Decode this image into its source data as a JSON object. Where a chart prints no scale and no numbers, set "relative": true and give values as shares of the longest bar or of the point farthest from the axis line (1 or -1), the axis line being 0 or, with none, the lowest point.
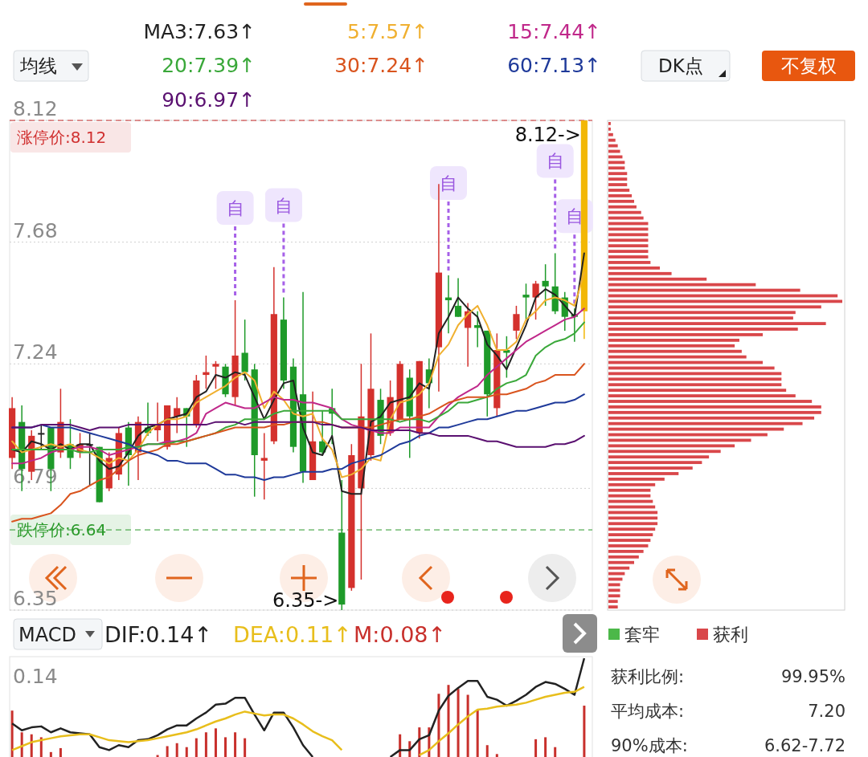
{
  "chart_data": [
    {
      "type": "other",
      "annotations": [
        "均线",
        "DK点",
        "不复权"
      ]
    },
    {
      "type": "candlestick",
      "legend": "top",
      "grid": "y",
      "ylim": [
        6.35,
        8.12
      ],
      "yticks": [
        8.12,
        7.68,
        7.24,
        6.79,
        6.35
      ],
      "categories": [
        null,
        null,
        null,
        null,
        null,
        null,
        null,
        null,
        null,
        null,
        null,
        null,
        null,
        null,
        null,
        null,
        null,
        null,
        null,
        null,
        null,
        null,
        null,
        null,
        null,
        null,
        null,
        null,
        null,
        null,
        null,
        null,
        null,
        null,
        null,
        null,
        null,
        null,
        null,
        null,
        null,
        null,
        null,
        null,
        null,
        null,
        null,
        null,
        null,
        null,
        null,
        null,
        null,
        null,
        null,
        null,
        null,
        null,
        null,
        null
      ],
      "ohlc": [
        [
          6.9,
          7.12,
          6.86,
          7.08
        ],
        [
          7.03,
          7.09,
          6.78,
          6.86
        ],
        [
          6.85,
          7.0,
          6.82,
          6.98
        ],
        [
          6.99,
          7.02,
          6.93,
          6.99
        ],
        [
          7.01,
          7.01,
          6.78,
          6.86
        ],
        [
          6.92,
          7.15,
          6.9,
          7.03
        ],
        [
          6.95,
          7.04,
          6.86,
          6.9
        ],
        [
          6.92,
          6.99,
          6.9,
          6.95
        ],
        [
          6.95,
          6.99,
          6.8,
          6.95
        ],
        [
          6.94,
          6.94,
          6.74,
          6.74
        ],
        [
          6.79,
          6.92,
          6.78,
          6.9
        ],
        [
          6.84,
          7.01,
          6.82,
          6.99
        ],
        [
          7.01,
          7.03,
          6.8,
          6.91
        ],
        [
          6.92,
          7.05,
          6.82,
          7.03
        ],
        [
          7.01,
          7.1,
          6.98,
          6.99
        ],
        [
          7.0,
          7.1,
          6.96,
          7.02
        ],
        [
          6.94,
          7.09,
          6.93,
          7.09
        ],
        [
          7.05,
          7.12,
          6.99,
          7.08
        ],
        [
          7.08,
          7.08,
          6.94,
          7.05
        ],
        [
          7.02,
          7.2,
          7.01,
          7.18
        ],
        [
          7.2,
          7.27,
          7.15,
          7.21
        ],
        [
          7.23,
          7.25,
          7.15,
          7.24
        ],
        [
          7.23,
          7.24,
          7.12,
          7.13
        ],
        [
          7.12,
          7.47,
          7.09,
          7.27
        ],
        [
          7.28,
          7.4,
          7.18,
          7.21
        ],
        [
          7.22,
          7.24,
          6.76,
          6.91
        ],
        [
          6.89,
          6.99,
          6.75,
          6.9
        ],
        [
          6.96,
          7.59,
          6.95,
          7.42
        ],
        [
          7.4,
          7.48,
          7.15,
          7.18
        ],
        [
          7.23,
          7.26,
          6.92,
          6.94
        ],
        [
          7.13,
          7.5,
          6.81,
          6.85
        ],
        [
          6.82,
          7.14,
          6.82,
          6.96
        ],
        [
          6.96,
          7.07,
          6.91,
          6.92
        ],
        [
          7.08,
          7.15,
          6.95,
          7.06
        ],
        [
          6.63,
          6.82,
          6.35,
          6.37
        ],
        [
          6.43,
          6.95,
          6.42,
          6.91
        ],
        [
          6.79,
          7.24,
          6.46,
          7.05
        ],
        [
          6.91,
          7.35,
          6.89,
          7.15
        ],
        [
          7.11,
          7.15,
          6.95,
          6.98
        ],
        [
          6.99,
          7.18,
          6.98,
          7.12
        ],
        [
          7.04,
          7.25,
          7.04,
          7.24
        ],
        [
          7.19,
          7.22,
          6.9,
          7.05
        ],
        [
          6.99,
          7.25,
          6.97,
          7.25
        ],
        [
          7.22,
          7.26,
          7.08,
          7.17
        ],
        [
          7.3,
          7.89,
          7.14,
          7.57
        ],
        [
          7.48,
          7.56,
          7.35,
          7.47
        ],
        [
          7.45,
          7.55,
          7.41,
          7.41
        ],
        [
          7.37,
          7.46,
          7.23,
          7.43
        ],
        [
          7.38,
          7.43,
          7.3,
          7.37
        ],
        [
          7.36,
          7.36,
          7.05,
          7.13
        ],
        [
          7.08,
          7.35,
          7.05,
          7.29
        ],
        [
          7.29,
          7.34,
          7.19,
          7.28
        ],
        [
          7.36,
          7.45,
          7.33,
          7.42
        ],
        [
          7.49,
          7.53,
          7.4,
          7.48
        ],
        [
          7.48,
          7.54,
          7.4,
          7.53
        ],
        [
          7.54,
          7.6,
          7.45,
          7.52
        ],
        [
          7.52,
          7.64,
          7.42,
          7.43
        ],
        [
          7.48,
          7.5,
          7.36,
          7.41
        ],
        [
          7.42,
          7.44,
          7.32,
          7.41
        ],
        [
          7.43,
          8.12,
          7.33,
          8.12
        ]
      ],
      "colors": [
        "#d4312d",
        "#1e9a29",
        "#d4312d",
        "#222222",
        "#1e9a29",
        "#d4312d",
        "#1e9a29",
        "#d4312d",
        "#222222",
        "#1e9a29",
        "#d4312d",
        "#d4312d",
        "#1e9a29",
        "#d4312d",
        "#1e9a29",
        "#d4312d",
        "#d4312d",
        "#d4312d",
        "#1e9a29",
        "#d4312d",
        "#d4312d",
        "#d4312d",
        "#1e9a29",
        "#d4312d",
        "#1e9a29",
        "#1e9a29",
        "#d4312d",
        "#d4312d",
        "#1e9a29",
        "#1e9a29",
        "#1e9a29",
        "#d4312d",
        "#1e9a29",
        "#1e9a29",
        "#1e9a29",
        "#d4312d",
        "#d4312d",
        "#d4312d",
        "#1e9a29",
        "#d4312d",
        "#d4312d",
        "#1e9a29",
        "#d4312d",
        "#1e9a29",
        "#d4312d",
        "#1e9a29",
        "#1e9a29",
        "#d4312d",
        "#1e9a29",
        "#1e9a29",
        "#d4312d",
        "#1e9a29",
        "#d4312d",
        "#1e9a29",
        "#d4312d",
        "#1e9a29",
        "#1e9a29",
        "#1e9a29",
        "#1e9a29",
        "#f2b705"
      ],
      "series": [
        {
          "type": "line",
          "name": "MA3:7.63↑",
          "color": "#222222",
          "values": [
            6.93,
            6.92,
            6.96,
            6.95,
            6.93,
            6.95,
            6.93,
            6.95,
            6.95,
            6.89,
            6.86,
            6.87,
            6.92,
            6.98,
            7.01,
            7.02,
            7.04,
            7.05,
            7.06,
            7.12,
            7.14,
            7.2,
            7.19,
            7.21,
            7.2,
            7.12,
            7.04,
            7.11,
            7.17,
            7.18,
            7.01,
            6.92,
            6.91,
            6.98,
            6.78,
            6.77,
            6.77,
            7.03,
            7.05,
            7.1,
            7.11,
            7.12,
            7.17,
            7.15,
            7.35,
            7.41,
            7.48,
            7.44,
            7.41,
            7.31,
            7.27,
            7.22,
            7.3,
            7.38,
            7.48,
            7.51,
            7.49,
            7.45,
            7.41,
            7.64
          ]
        },
        {
          "type": "line",
          "name": "5:7.57↑",
          "color": "#f0b030",
          "values": [
            6.96,
            6.92,
            6.93,
            6.94,
            6.95,
            6.94,
            6.95,
            6.93,
            6.92,
            6.9,
            6.88,
            6.9,
            6.89,
            6.93,
            6.99,
            7.02,
            7.04,
            7.04,
            7.05,
            7.1,
            7.12,
            7.14,
            7.16,
            7.19,
            7.21,
            7.18,
            7.08,
            7.14,
            7.11,
            7.06,
            7.05,
            7.06,
            6.97,
            6.93,
            6.83,
            6.84,
            6.86,
            6.9,
            6.89,
            7.04,
            7.1,
            7.11,
            7.13,
            7.17,
            7.27,
            7.31,
            7.38,
            7.42,
            7.45,
            7.38,
            7.29,
            7.29,
            7.32,
            7.4,
            7.43,
            7.47,
            7.48,
            7.47,
            7.45,
            7.57
          ]
        },
        {
          "type": "line",
          "name": "15:7.44↑",
          "color": "#c0288a",
          "values": [
            6.88,
            6.88,
            6.89,
            6.9,
            6.92,
            6.93,
            6.93,
            6.94,
            6.94,
            6.93,
            6.91,
            6.92,
            6.93,
            6.94,
            6.95,
            6.95,
            6.96,
            6.96,
            6.97,
            6.99,
            7.06,
            7.08,
            7.1,
            7.09,
            7.08,
            7.08,
            7.1,
            7.12,
            7.11,
            7.11,
            7.1,
            7.1,
            7.09,
            7.08,
            7.04,
            7.02,
            7.01,
            7.0,
            6.99,
            6.99,
            7.01,
            7.01,
            7.01,
            7.01,
            7.05,
            7.09,
            7.12,
            7.14,
            7.16,
            7.2,
            7.23,
            7.26,
            7.29,
            7.32,
            7.34,
            7.36,
            7.38,
            7.4,
            7.41,
            7.44
          ]
        },
        {
          "type": "line",
          "name": "20:7.39↑",
          "color": "#3aa83a",
          "values": [
            6.93,
            6.93,
            6.93,
            6.93,
            6.93,
            6.93,
            6.93,
            6.92,
            6.92,
            6.93,
            6.93,
            6.93,
            6.94,
            6.94,
            6.95,
            6.95,
            6.95,
            6.96,
            6.96,
            6.97,
            6.98,
            6.99,
            7.01,
            7.02,
            7.04,
            7.04,
            7.04,
            7.06,
            7.07,
            7.07,
            7.07,
            7.07,
            7.07,
            7.07,
            7.04,
            7.04,
            7.04,
            7.04,
            7.04,
            7.04,
            7.03,
            7.04,
            7.04,
            7.03,
            7.05,
            7.07,
            7.1,
            7.1,
            7.11,
            7.12,
            7.15,
            7.17,
            7.18,
            7.2,
            7.27,
            7.3,
            7.32,
            7.33,
            7.35,
            7.39
          ]
        },
        {
          "type": "line",
          "name": "30:7.24↑",
          "color": "#d9541e",
          "values": [
            6.67,
            6.68,
            6.68,
            6.69,
            6.7,
            6.73,
            6.77,
            6.78,
            6.8,
            6.82,
            6.83,
            6.86,
            6.89,
            6.91,
            6.92,
            6.93,
            6.95,
            6.95,
            6.96,
            6.97,
            6.98,
            6.99,
            7.0,
            7.01,
            7.01,
            7.01,
            7.01,
            7.02,
            7.02,
            7.03,
            7.03,
            7.03,
            7.03,
            7.02,
            7.01,
            7.01,
            7.01,
            7.01,
            7.02,
            7.03,
            7.04,
            7.04,
            7.05,
            7.06,
            7.08,
            7.1,
            7.11,
            7.12,
            7.12,
            7.12,
            7.13,
            7.13,
            7.14,
            7.15,
            7.17,
            7.18,
            7.2,
            7.2,
            7.2,
            7.24
          ]
        },
        {
          "type": "line",
          "name": "60:7.13↑",
          "color": "#1f3a9a",
          "values": [
            7.01,
            7.01,
            7.01,
            7.02,
            7.01,
            7.01,
            7.01,
            7.0,
            6.99,
            6.98,
            6.97,
            6.96,
            6.95,
            6.93,
            6.92,
            6.91,
            6.89,
            6.89,
            6.88,
            6.88,
            6.88,
            6.86,
            6.84,
            6.84,
            6.83,
            6.83,
            6.82,
            6.83,
            6.83,
            6.84,
            6.85,
            6.85,
            6.85,
            6.86,
            6.86,
            6.88,
            6.89,
            6.9,
            6.91,
            6.93,
            6.95,
            6.96,
            6.98,
            6.99,
            7.01,
            7.01,
            7.02,
            7.03,
            7.04,
            7.04,
            7.05,
            7.06,
            7.07,
            7.07,
            7.08,
            7.09,
            7.1,
            7.1,
            7.11,
            7.13
          ]
        },
        {
          "type": "line",
          "name": "90:6.97↑",
          "color": "#5a1070",
          "values": [
            7.01,
            7.01,
            7.01,
            7.02,
            7.02,
            7.02,
            7.02,
            7.01,
            7.0,
            7.01,
            7.01,
            7.01,
            7.02,
            7.02,
            7.02,
            7.02,
            7.02,
            7.02,
            7.02,
            7.02,
            7.02,
            7.03,
            7.03,
            7.03,
            7.02,
            7.03,
            7.03,
            7.03,
            7.03,
            7.03,
            7.03,
            7.03,
            7.02,
            7.02,
            7.01,
            7.01,
            7.01,
            7.0,
            7.0,
            7.0,
            7.0,
            7.0,
            6.99,
            6.99,
            6.98,
            6.98,
            6.98,
            6.98,
            6.97,
            6.96,
            6.96,
            6.95,
            6.94,
            6.94,
            6.94,
            6.94,
            6.95,
            6.95,
            6.96,
            6.98
          ]
        }
      ],
      "ref_lines": [
        {
          "axis": "y",
          "value": 8.12,
          "label": "涨停价:8.12",
          "color": "#d03030",
          "line_style": "dashed"
        },
        {
          "axis": "y",
          "value": 6.64,
          "label": "跌停价:6.64",
          "color": "#2a9a2a",
          "line_style": "dashed"
        }
      ],
      "annotations": [
        "8.12->",
        "6.35->",
        {
          "text": "自",
          "y": 7.47
        },
        {
          "text": "自",
          "y": 7.48
        },
        {
          "text": "自",
          "y": 7.56
        },
        {
          "text": "自",
          "y": 7.64
        },
        {
          "text": "自",
          "y": 7.44
        }
      ]
    },
    {
      "type": "bar",
      "orientation": "horizontal",
      "relative": true,
      "legend": "bottom",
      "categories": [
        null,
        null,
        null,
        null,
        null,
        null,
        null,
        null,
        null,
        null,
        null,
        null,
        null,
        null,
        null,
        null,
        null,
        null,
        null,
        null,
        null,
        null,
        null,
        null,
        null,
        null,
        null,
        null,
        null,
        null,
        null,
        null,
        null,
        null,
        null,
        null,
        null,
        null,
        null,
        null,
        null,
        null,
        null,
        null,
        null,
        null,
        null,
        null,
        null,
        null,
        null,
        null,
        null,
        null,
        null,
        null,
        null,
        null,
        null,
        null,
        null,
        null,
        null,
        null,
        null,
        null,
        null,
        null,
        null,
        null,
        null,
        null,
        null,
        null,
        null,
        null,
        null,
        null,
        null,
        null,
        null,
        null,
        null,
        null,
        null,
        null,
        null,
        null
      ],
      "series": [
        {
          "name": "获利",
          "color": "#d9474a",
          "values": [
            0.01,
            0.01,
            0.02,
            0.03,
            0.04,
            0.05,
            0.06,
            0.07,
            0.07,
            0.08,
            0.08,
            0.08,
            0.09,
            0.1,
            0.11,
            0.12,
            0.14,
            0.15,
            0.17,
            0.17,
            0.17,
            0.17,
            0.17,
            0.17,
            0.17,
            0.18,
            0.22,
            0.27,
            0.42,
            0.63,
            0.82,
            0.98,
            1,
            0.91,
            0.8,
            0.79,
            0.93,
            0.81,
            0.66,
            0.56,
            0.54,
            0.57,
            0.59,
            0.66,
            0.71,
            0.74,
            0.74,
            0.74,
            0.76,
            0.8,
            0.87,
            0.91,
            0.91,
            0.88,
            0.83,
            0.75,
            0.68,
            0.61,
            0.54,
            0.48,
            0.43,
            0.4,
            0.36,
            0.3,
            0.24,
            0.2,
            0.18,
            0.18,
            0.19,
            0.2,
            0.21,
            0.21,
            0.21,
            0.2,
            0.19,
            0.18,
            0.17,
            0.15,
            0.13,
            0.11,
            0.09,
            0.07,
            0.06,
            0.05,
            0.05,
            0.05,
            0.04,
            0.04
          ]
        }
      ],
      "annotations": [
        "套牢",
        "获利比例:",
        "99.95%",
        "平均成本:",
        "7.20",
        "90%成本:",
        "6.62-7.72"
      ]
    },
    {
      "type": "line",
      "relative": true,
      "title": "MACD",
      "legend": "top left",
      "categories": [
        null,
        null,
        null,
        null,
        null,
        null,
        null,
        null,
        null,
        null,
        null,
        null,
        null,
        null,
        null,
        null,
        null,
        null,
        null,
        null,
        null,
        null,
        null,
        null,
        null,
        null,
        null,
        null,
        null,
        null,
        null,
        null,
        null,
        null,
        null,
        null,
        null,
        null,
        null,
        null,
        null,
        null,
        null,
        null,
        null,
        null,
        null,
        null,
        null,
        null,
        null,
        null,
        null,
        null,
        null,
        null,
        null,
        null,
        null,
        null
      ],
      "series": [
        {
          "name": "DIF:0.14↑",
          "color": "#222222",
          "values": [
            0.34,
            0.27,
            0.3,
            0.31,
            0.25,
            0.29,
            0.25,
            0.24,
            0.23,
            0.1,
            0.07,
            0.12,
            0.1,
            0.17,
            0.18,
            0.22,
            0.28,
            0.32,
            0.32,
            0.39,
            0.45,
            0.53,
            0.54,
            0.6,
            0.6,
            0.43,
            0.27,
            0.45,
            0.45,
            0.3,
            0.12,
            0,
            null,
            null,
            null,
            null,
            null,
            null,
            null,
            0,
            0.07,
            0.07,
            0.18,
            0.22,
            0.47,
            0.62,
            0.7,
            0.77,
            0.77,
            0.61,
            0.58,
            0.52,
            0.57,
            0.63,
            0.71,
            0.76,
            0.74,
            0.69,
            0.63,
            1
          ]
        },
        {
          "name": "DEA:0.11↑",
          "color": "#e8be1c",
          "values": [
            0.07,
            0.11,
            0.15,
            0.17,
            0.19,
            0.21,
            0.22,
            0.23,
            0.23,
            0.2,
            0.17,
            0.16,
            0.15,
            0.16,
            0.17,
            0.19,
            0.21,
            0.23,
            0.25,
            0.28,
            0.32,
            0.36,
            0.39,
            0.43,
            0.46,
            0.44,
            0.42,
            0.43,
            0.43,
            0.39,
            0.33,
            0.26,
            0.21,
            0.17,
            0.07,
            null,
            null,
            null,
            null,
            null,
            null,
            null,
            0.02,
            0.07,
            0.16,
            0.24,
            0.33,
            0.41,
            0.48,
            0.49,
            0.51,
            0.52,
            0.53,
            0.55,
            0.58,
            0.61,
            0.63,
            0.65,
            0.66,
            0.71
          ]
        },
        {
          "type": "bar",
          "name": "M:0.08↑",
          "color": "#c8302c",
          "values": [
            0.47,
            0.25,
            0.23,
            0.2,
            0.05,
            0.09,
            null,
            null,
            null,
            null,
            null,
            null,
            null,
            null,
            null,
            0.02,
            0.11,
            0.14,
            0.1,
            0.19,
            0.25,
            0.29,
            0.2,
            0.25,
            0.19,
            null,
            null,
            null,
            null,
            null,
            null,
            null,
            null,
            null,
            null,
            null,
            null,
            null,
            null,
            null,
            0.23,
            0.16,
            0.3,
            0.3,
            0.64,
            0.73,
            0.69,
            0.63,
            0.48,
            0.12,
            0.03,
            null,
            null,
            null,
            0.18,
            0.2,
            0.1,
            null,
            null,
            0.52
          ]
        }
      ],
      "annotations": [
        "0.14"
      ]
    }
  ]
}
